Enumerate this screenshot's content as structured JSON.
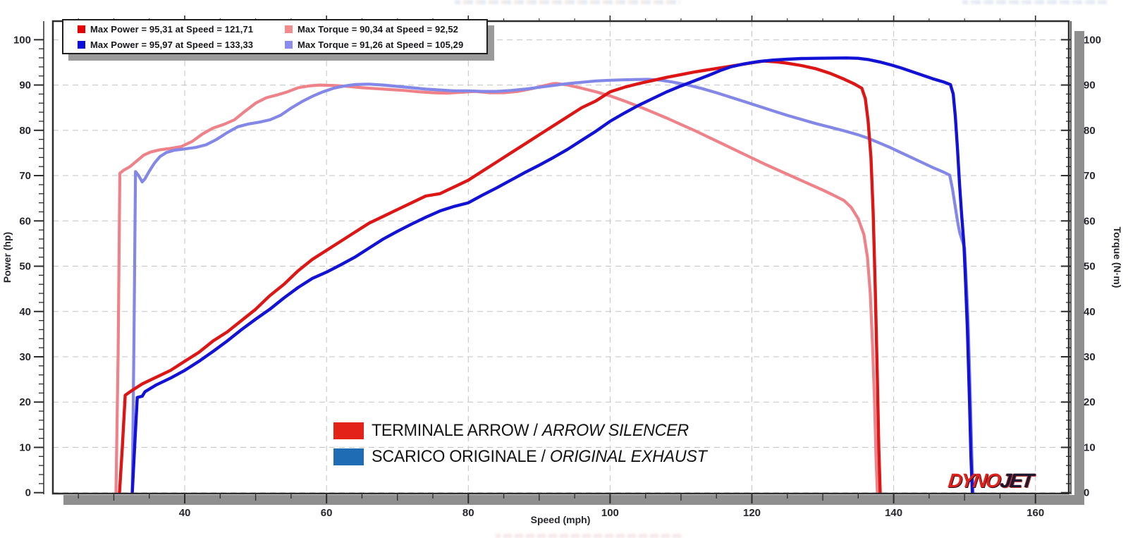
{
  "legend_box": {
    "rows": [
      {
        "swatch_color": "#e60000",
        "text": "Max Power = 95,31 at Speed = 121,71"
      },
      {
        "swatch_color": "#f28b8b",
        "text": "Max Torque = 90,34 at Speed = 92,52"
      },
      {
        "swatch_color": "#0b0bdc",
        "text": "Max Power = 95,97 at Speed = 133,33"
      },
      {
        "swatch_color": "#8c8cf0",
        "text": "Max Torque = 91,26 at Speed = 105,29"
      }
    ]
  },
  "series_legend": [
    {
      "color": "#e3231a",
      "label_main": "TERMINALE ARROW / ",
      "label_italic": "ARROW SILENCER"
    },
    {
      "color": "#1f6cb5",
      "label_main": "SCARICO ORIGINALE / ",
      "label_italic": "ORIGINAL EXHAUST"
    }
  ],
  "watermark": {
    "part1": "DYNO",
    "part2": "JET"
  },
  "chart_data": {
    "type": "line",
    "xlabel": "Speed (mph)",
    "ylabel_left": "Power (hp)",
    "ylabel_right": "Torque (N·m)",
    "x_range": [
      21.4,
      164.7
    ],
    "y_range": [
      -0.2,
      104.1
    ],
    "x_ticks": [
      40,
      60,
      80,
      100,
      120,
      140,
      160
    ],
    "y_ticks": [
      0,
      10,
      20,
      30,
      40,
      50,
      60,
      70,
      80,
      90,
      100
    ],
    "x_minor_step": 5,
    "y_minor_step": 2,
    "grid": "dashed",
    "maxima": [
      {
        "series": "arrow_power",
        "max": 95.31,
        "at_speed": 121.71
      },
      {
        "series": "original_power",
        "max": 95.97,
        "at_speed": 133.33
      },
      {
        "series": "arrow_torque",
        "max": 90.34,
        "at_speed": 92.52
      },
      {
        "series": "original_torque",
        "max": 91.26,
        "at_speed": 105.29
      }
    ],
    "series": [
      {
        "name": "arrow_torque",
        "color": "#ef8189",
        "width": 4.2,
        "points": [
          [
            30.3,
            0
          ],
          [
            30.6,
            30
          ],
          [
            30.85,
            70.5
          ],
          [
            31.4,
            71.2
          ],
          [
            32.3,
            72
          ],
          [
            33.2,
            73.2
          ],
          [
            34.2,
            74.5
          ],
          [
            35.2,
            75.2
          ],
          [
            36.5,
            75.7
          ],
          [
            38,
            76
          ],
          [
            39.5,
            76.4
          ],
          [
            41,
            77.5
          ],
          [
            42.5,
            79.2
          ],
          [
            44,
            80.5
          ],
          [
            45.5,
            81.3
          ],
          [
            47,
            82.3
          ],
          [
            48.5,
            84.2
          ],
          [
            50,
            86
          ],
          [
            51.5,
            87.2
          ],
          [
            53,
            87.8
          ],
          [
            54.5,
            88.5
          ],
          [
            56,
            89.4
          ],
          [
            57.5,
            89.8
          ],
          [
            59,
            90
          ],
          [
            61,
            89.9
          ],
          [
            63,
            89.7
          ],
          [
            65,
            89.4
          ],
          [
            67,
            89.2
          ],
          [
            69,
            89
          ],
          [
            71,
            88.8
          ],
          [
            73,
            88.5
          ],
          [
            75,
            88.3
          ],
          [
            77,
            88.2
          ],
          [
            79,
            88.4
          ],
          [
            81,
            88.6
          ],
          [
            83,
            88.3
          ],
          [
            85,
            88.3
          ],
          [
            87,
            88.6
          ],
          [
            89,
            89.2
          ],
          [
            90.5,
            89.8
          ],
          [
            92,
            90.3
          ],
          [
            92.5,
            90.34
          ],
          [
            94,
            90
          ],
          [
            96,
            89.3
          ],
          [
            98,
            88.5
          ],
          [
            100,
            87.6
          ],
          [
            102,
            86.5
          ],
          [
            104,
            85.3
          ],
          [
            106,
            84
          ],
          [
            108,
            82.7
          ],
          [
            110,
            81.3
          ],
          [
            112,
            79.9
          ],
          [
            114,
            78.4
          ],
          [
            116,
            76.9
          ],
          [
            118,
            75.4
          ],
          [
            120,
            73.9
          ],
          [
            122,
            72.4
          ],
          [
            124,
            71
          ],
          [
            126,
            69.6
          ],
          [
            128,
            68.2
          ],
          [
            130,
            66.8
          ],
          [
            131.5,
            65.7
          ],
          [
            133,
            64.5
          ],
          [
            134,
            63
          ],
          [
            135,
            60.5
          ],
          [
            135.8,
            57
          ],
          [
            136.3,
            52
          ],
          [
            136.7,
            44
          ],
          [
            137,
            33
          ],
          [
            137.3,
            20
          ],
          [
            137.5,
            8
          ],
          [
            137.7,
            0
          ]
        ]
      },
      {
        "name": "original_torque",
        "color": "#8287e8",
        "width": 4.2,
        "points": [
          [
            32.6,
            0
          ],
          [
            32.85,
            35
          ],
          [
            33.05,
            70.9
          ],
          [
            33.5,
            70
          ],
          [
            34,
            68.6
          ],
          [
            34.4,
            69.3
          ],
          [
            35,
            71
          ],
          [
            35.7,
            72.7
          ],
          [
            36.5,
            74.2
          ],
          [
            37.4,
            75.1
          ],
          [
            38.5,
            75.6
          ],
          [
            40,
            75.9
          ],
          [
            41.5,
            76.2
          ],
          [
            43,
            76.8
          ],
          [
            44.5,
            78
          ],
          [
            46,
            79.5
          ],
          [
            47.5,
            80.8
          ],
          [
            49,
            81.4
          ],
          [
            50.5,
            81.8
          ],
          [
            52,
            82.3
          ],
          [
            53.5,
            83.3
          ],
          [
            55,
            84.9
          ],
          [
            56.5,
            86.3
          ],
          [
            58,
            87.5
          ],
          [
            59.5,
            88.5
          ],
          [
            61,
            89.3
          ],
          [
            62.5,
            89.8
          ],
          [
            64,
            90.1
          ],
          [
            66,
            90.2
          ],
          [
            68,
            90
          ],
          [
            70,
            89.7
          ],
          [
            72,
            89.4
          ],
          [
            74,
            89.1
          ],
          [
            76,
            88.9
          ],
          [
            78,
            88.7
          ],
          [
            80,
            88.7
          ],
          [
            82,
            88.6
          ],
          [
            84,
            88.6
          ],
          [
            86,
            88.8
          ],
          [
            88,
            89.1
          ],
          [
            90,
            89.5
          ],
          [
            92,
            89.9
          ],
          [
            94,
            90.3
          ],
          [
            96,
            90.6
          ],
          [
            98,
            90.9
          ],
          [
            100,
            91.05
          ],
          [
            102,
            91.15
          ],
          [
            104,
            91.22
          ],
          [
            105.3,
            91.26
          ],
          [
            107,
            91.1
          ],
          [
            109,
            90.6
          ],
          [
            111,
            90
          ],
          [
            113,
            89.2
          ],
          [
            115,
            88.3
          ],
          [
            117,
            87.3
          ],
          [
            119,
            86.3
          ],
          [
            121,
            85.3
          ],
          [
            123,
            84.3
          ],
          [
            125,
            83.3
          ],
          [
            127,
            82.4
          ],
          [
            129,
            81.5
          ],
          [
            131,
            80.7
          ],
          [
            133,
            79.9
          ],
          [
            135,
            79
          ],
          [
            136.3,
            78.3
          ],
          [
            138,
            77.2
          ],
          [
            139.5,
            76.2
          ],
          [
            141,
            75.1
          ],
          [
            142.5,
            74
          ],
          [
            144,
            72.9
          ],
          [
            145.5,
            71.8
          ],
          [
            147,
            70.8
          ],
          [
            147.9,
            70.1
          ],
          [
            148.3,
            67
          ],
          [
            148.7,
            63
          ],
          [
            149,
            60
          ],
          [
            149.3,
            57.5
          ],
          [
            149.7,
            55.5
          ],
          [
            150,
            54
          ],
          [
            150.2,
            48
          ],
          [
            150.5,
            38
          ],
          [
            150.8,
            22
          ],
          [
            151,
            10
          ],
          [
            151.2,
            0
          ]
        ]
      },
      {
        "name": "arrow_power",
        "color": "#dd1515",
        "width": 4.4,
        "points": [
          [
            30.8,
            0
          ],
          [
            31.2,
            10
          ],
          [
            31.6,
            21.5
          ],
          [
            32.5,
            22.5
          ],
          [
            34,
            24
          ],
          [
            36,
            25.5
          ],
          [
            38,
            27
          ],
          [
            40,
            29
          ],
          [
            42,
            31
          ],
          [
            44,
            33.5
          ],
          [
            46,
            35.5
          ],
          [
            48,
            38
          ],
          [
            50,
            40.5
          ],
          [
            52,
            43.5
          ],
          [
            54,
            46
          ],
          [
            56,
            49
          ],
          [
            58,
            51.5
          ],
          [
            60,
            53.5
          ],
          [
            62,
            55.5
          ],
          [
            64,
            57.5
          ],
          [
            66,
            59.5
          ],
          [
            68,
            61
          ],
          [
            70,
            62.5
          ],
          [
            72,
            64
          ],
          [
            74,
            65.5
          ],
          [
            76,
            66
          ],
          [
            78,
            67.5
          ],
          [
            80,
            69
          ],
          [
            82,
            71
          ],
          [
            84,
            73
          ],
          [
            86,
            75
          ],
          [
            88,
            77
          ],
          [
            90,
            79
          ],
          [
            92,
            81
          ],
          [
            94,
            83
          ],
          [
            96,
            85
          ],
          [
            98,
            86.5
          ],
          [
            100,
            88.5
          ],
          [
            102,
            89.5
          ],
          [
            104,
            90.3
          ],
          [
            106,
            91
          ],
          [
            108,
            91.7
          ],
          [
            110,
            92.3
          ],
          [
            112,
            92.9
          ],
          [
            114,
            93.4
          ],
          [
            116,
            93.9
          ],
          [
            118,
            94.4
          ],
          [
            120,
            94.9
          ],
          [
            121.7,
            95.31
          ],
          [
            123.5,
            95.1
          ],
          [
            125,
            94.8
          ],
          [
            127,
            94.3
          ],
          [
            129,
            93.6
          ],
          [
            131,
            92.6
          ],
          [
            133,
            91.3
          ],
          [
            134.5,
            90.2
          ],
          [
            135.5,
            89.3
          ],
          [
            136,
            87
          ],
          [
            136.4,
            82
          ],
          [
            136.8,
            74
          ],
          [
            137.1,
            62
          ],
          [
            137.4,
            45
          ],
          [
            137.7,
            25
          ],
          [
            137.9,
            10
          ],
          [
            138.1,
            0
          ]
        ]
      },
      {
        "name": "original_power",
        "color": "#1212d6",
        "width": 4.4,
        "points": [
          [
            32.6,
            0
          ],
          [
            33,
            12
          ],
          [
            33.3,
            21
          ],
          [
            34,
            21.3
          ],
          [
            34.4,
            22.3
          ],
          [
            36,
            23.8
          ],
          [
            38,
            25.3
          ],
          [
            40,
            27
          ],
          [
            42,
            29
          ],
          [
            44,
            31.2
          ],
          [
            46,
            33.5
          ],
          [
            48,
            36
          ],
          [
            50,
            38.3
          ],
          [
            52,
            40.5
          ],
          [
            54,
            43
          ],
          [
            56,
            45.3
          ],
          [
            58,
            47.3
          ],
          [
            60,
            48.7
          ],
          [
            62,
            50.3
          ],
          [
            64,
            52
          ],
          [
            66,
            54
          ],
          [
            68,
            56
          ],
          [
            70,
            57.7
          ],
          [
            72,
            59.3
          ],
          [
            74,
            60.8
          ],
          [
            76,
            62.2
          ],
          [
            78,
            63.2
          ],
          [
            80,
            64
          ],
          [
            82,
            65.7
          ],
          [
            84,
            67.3
          ],
          [
            86,
            69
          ],
          [
            88,
            70.7
          ],
          [
            90,
            72.3
          ],
          [
            92,
            74
          ],
          [
            94,
            75.8
          ],
          [
            96,
            77.8
          ],
          [
            98,
            79.8
          ],
          [
            100,
            82
          ],
          [
            102,
            83.8
          ],
          [
            104,
            85.5
          ],
          [
            106,
            87
          ],
          [
            108,
            88.5
          ],
          [
            110,
            89.8
          ],
          [
            112,
            91
          ],
          [
            114,
            92.2
          ],
          [
            115.7,
            93.3
          ],
          [
            117,
            94
          ],
          [
            119,
            94.7
          ],
          [
            121,
            95.2
          ],
          [
            123,
            95.5
          ],
          [
            125,
            95.7
          ],
          [
            127,
            95.85
          ],
          [
            129,
            95.9
          ],
          [
            131,
            95.95
          ],
          [
            133.3,
            95.97
          ],
          [
            135,
            95.9
          ],
          [
            136.5,
            95.6
          ],
          [
            138,
            95.1
          ],
          [
            139.5,
            94.5
          ],
          [
            141,
            93.8
          ],
          [
            142.5,
            93
          ],
          [
            144,
            92.2
          ],
          [
            145.5,
            91.4
          ],
          [
            147,
            90.7
          ],
          [
            148,
            90.1
          ],
          [
            148.4,
            88
          ],
          [
            148.7,
            83
          ],
          [
            149,
            76
          ],
          [
            149.3,
            68
          ],
          [
            149.6,
            61
          ],
          [
            149.9,
            55
          ],
          [
            150.1,
            48
          ],
          [
            150.4,
            36
          ],
          [
            150.7,
            20
          ],
          [
            150.9,
            8
          ],
          [
            151.1,
            0
          ]
        ]
      }
    ]
  }
}
